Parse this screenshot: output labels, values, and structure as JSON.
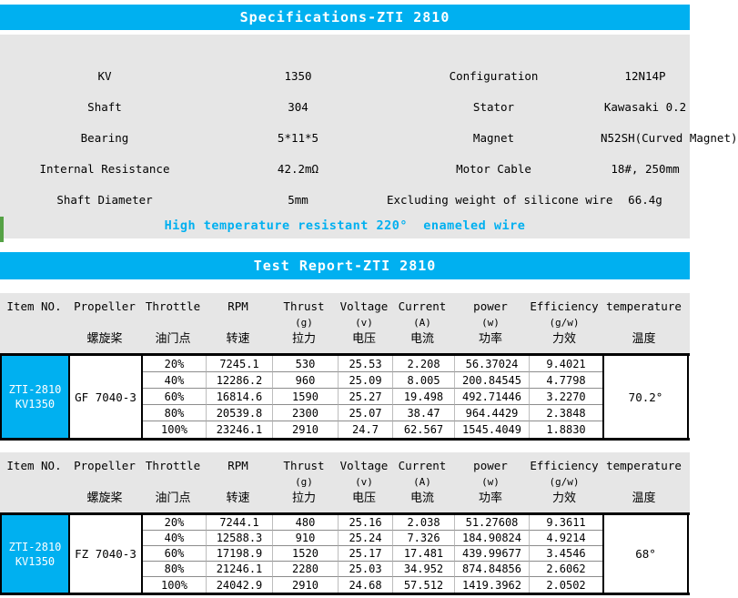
{
  "colors": {
    "accent": "#00B0F0",
    "section_bg": "#E6E6E6",
    "green_tab": "#55A245",
    "note_text": "#00B0F0"
  },
  "spec": {
    "title": "Specifications-ZTI 2810",
    "rows": [
      {
        "label_left": "KV",
        "value_left": "1350",
        "label_right": "Configuration",
        "value_right": "12N14P"
      },
      {
        "label_left": "Shaft",
        "value_left": "304",
        "label_right": "Stator",
        "value_right": "Kawasaki 0.2"
      },
      {
        "label_left": "Bearing",
        "value_left": "5*11*5",
        "label_right": "Magnet",
        "value_right": "N52SH(Curved Magnet)"
      },
      {
        "label_left": "Internal Resistance",
        "value_left": "42.2mΩ",
        "label_right": "Motor Cable",
        "value_right": "18#, 250mm"
      },
      {
        "label_left": "Shaft Diameter",
        "value_left": "5mm",
        "label_right": "Excluding weight of silicone wire",
        "value_right": "66.4g"
      }
    ],
    "note": "High temperature resistant 220°  enameled wire"
  },
  "test": {
    "title": "Test Report-ZTI 2810",
    "columns": [
      {
        "en": "Item NO.",
        "unit": "",
        "cn": ""
      },
      {
        "en": "Propeller",
        "unit": "",
        "cn": "螺旋桨"
      },
      {
        "en": "Throttle",
        "unit": "",
        "cn": "油门点"
      },
      {
        "en": "RPM",
        "unit": "",
        "cn": "转速"
      },
      {
        "en": "Thrust",
        "unit": "(g)",
        "cn": "拉力"
      },
      {
        "en": "Voltage",
        "unit": "(v)",
        "cn": "电压"
      },
      {
        "en": "Current",
        "unit": "(A)",
        "cn": "电流"
      },
      {
        "en": "power",
        "unit": "(w)",
        "cn": "功率"
      },
      {
        "en": "Efficiency",
        "unit": "(g/w)",
        "cn": "力效"
      },
      {
        "en": "temperature",
        "unit": "",
        "cn": "温度"
      }
    ],
    "blocks": [
      {
        "item": [
          "ZTI-2810",
          "KV1350"
        ],
        "propeller": "GF 7040-3",
        "temperature": "70.2°",
        "rows": [
          [
            "20%",
            "7245.1",
            "530",
            "25.53",
            "2.208",
            "56.37024",
            "9.4021"
          ],
          [
            "40%",
            "12286.2",
            "960",
            "25.09",
            "8.005",
            "200.84545",
            "4.7798"
          ],
          [
            "60%",
            "16814.6",
            "1590",
            "25.27",
            "19.498",
            "492.71446",
            "3.2270"
          ],
          [
            "80%",
            "20539.8",
            "2300",
            "25.07",
            "38.47",
            "964.4429",
            "2.3848"
          ],
          [
            "100%",
            "23246.1",
            "2910",
            "24.7",
            "62.567",
            "1545.4049",
            "1.8830"
          ]
        ]
      },
      {
        "item": [
          "ZTI-2810",
          "KV1350"
        ],
        "propeller": "FZ 7040-3",
        "temperature": "68°",
        "rows": [
          [
            "20%",
            "7244.1",
            "480",
            "25.16",
            "2.038",
            "51.27608",
            "9.3611"
          ],
          [
            "40%",
            "12588.3",
            "910",
            "25.24",
            "7.326",
            "184.90824",
            "4.9214"
          ],
          [
            "60%",
            "17198.9",
            "1520",
            "25.17",
            "17.481",
            "439.99677",
            "3.4546"
          ],
          [
            "80%",
            "21246.1",
            "2280",
            "25.03",
            "34.952",
            "874.84856",
            "2.6062"
          ],
          [
            "100%",
            "24042.9",
            "2910",
            "24.68",
            "57.512",
            "1419.3962",
            "2.0502"
          ]
        ]
      }
    ]
  }
}
